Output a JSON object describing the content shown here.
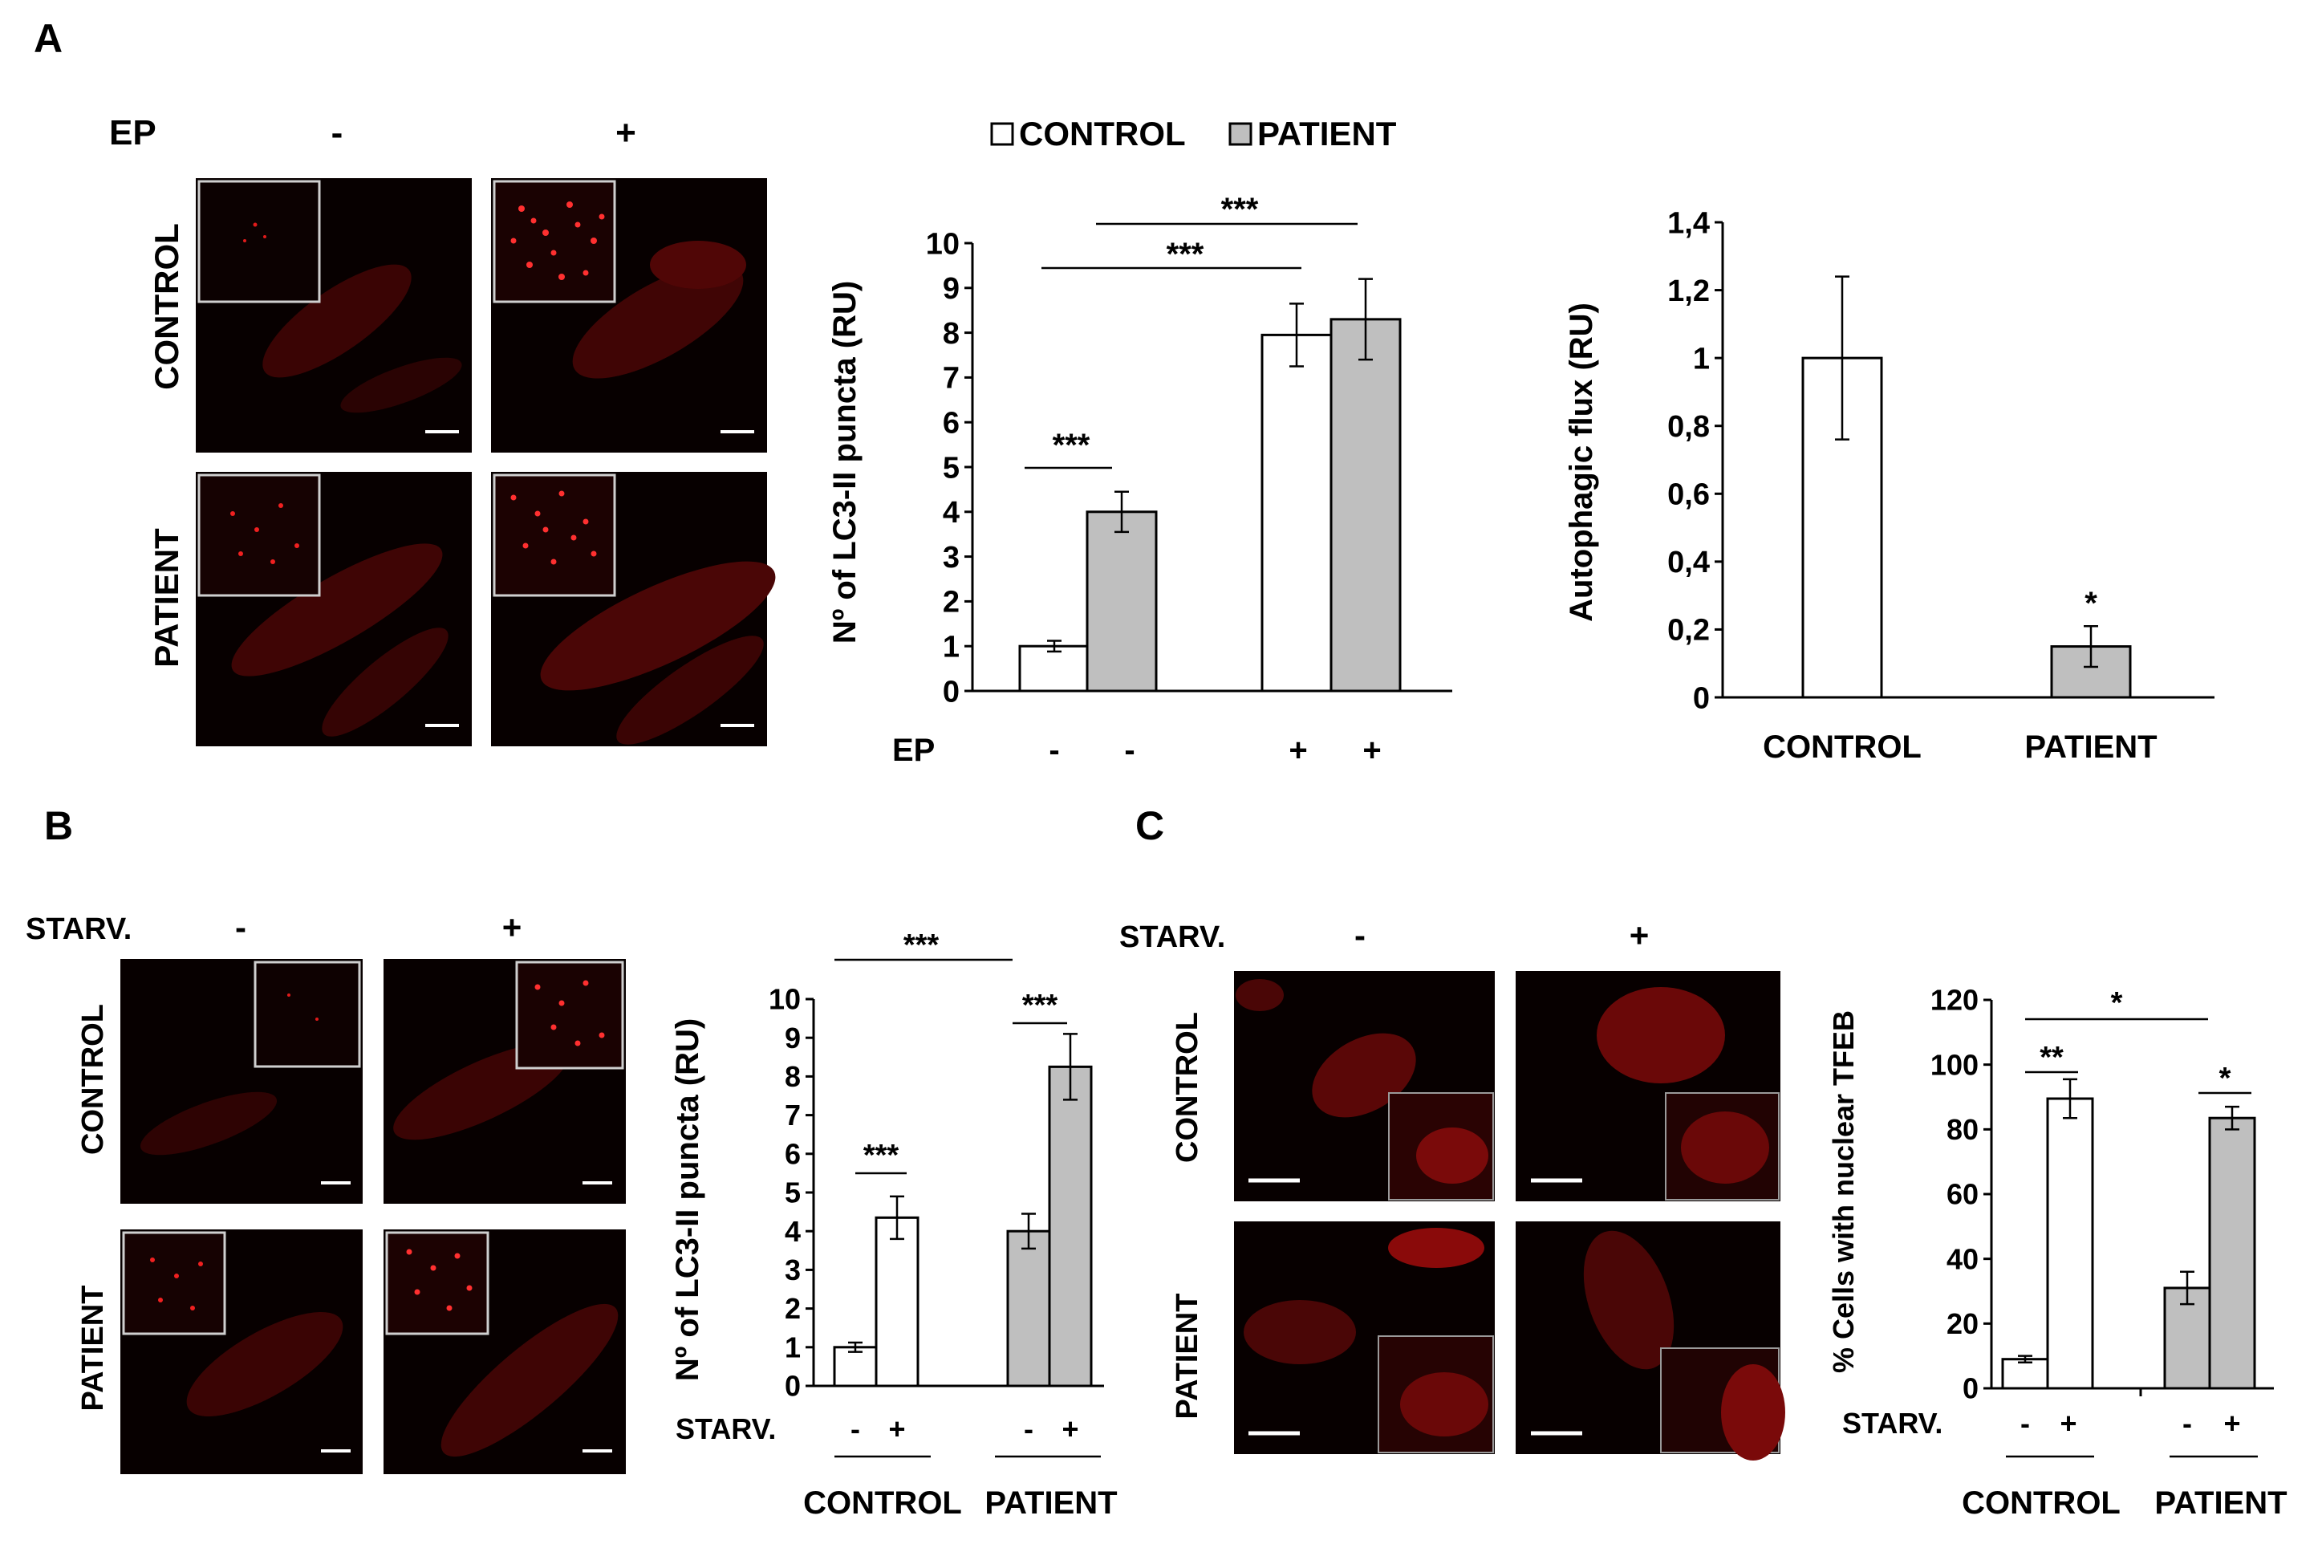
{
  "panels": {
    "A": {
      "letter": "A",
      "images": {
        "treatment_label": "EP",
        "col_labels": [
          "-",
          "+"
        ],
        "row_labels": [
          "CONTROL",
          "PATIENT"
        ]
      }
    },
    "B": {
      "letter": "B",
      "images": {
        "treatment_label": "STARV.",
        "col_labels": [
          "-",
          "+"
        ],
        "row_labels": [
          "CONTROL",
          "PATIENT"
        ]
      }
    },
    "C": {
      "letter": "C",
      "images": {
        "treatment_label": "STARV.",
        "col_labels": [
          "-",
          "+"
        ],
        "row_labels": [
          "CONTROL",
          "PATIENT"
        ]
      }
    }
  },
  "legend": [
    {
      "name": "CONTROL",
      "color": "#ffffff"
    },
    {
      "name": "PATIENT",
      "color": "#bfbfbf"
    }
  ],
  "colors": {
    "control": "#ffffff",
    "patient": "#bfbfbf",
    "micrograph_bg": "#070000",
    "signal": "#e01a1a"
  },
  "chart_data": [
    {
      "id": "A-puncta",
      "type": "bar",
      "ylabel": "Nº of LC3-II puncta (RU)",
      "ylim": [
        0,
        10
      ],
      "yticks": [
        0,
        1,
        2,
        3,
        4,
        5,
        6,
        7,
        8,
        9,
        10
      ],
      "bars": [
        {
          "group": "CONTROL",
          "treatment": "-",
          "value": 1.0,
          "error": 0.12
        },
        {
          "group": "PATIENT",
          "treatment": "-",
          "value": 4.0,
          "error": 0.45
        },
        {
          "group": "CONTROL",
          "treatment": "+",
          "value": 7.95,
          "error": 0.7
        },
        {
          "group": "PATIENT",
          "treatment": "+",
          "value": 8.3,
          "error": 0.9
        }
      ],
      "treatment_label": "EP",
      "treatment_ticks": [
        "-",
        "-",
        "+",
        "+"
      ],
      "significance": [
        "***",
        "***",
        "***"
      ]
    },
    {
      "id": "A-flux",
      "type": "bar",
      "ylabel": "Autophagic flux (RU)",
      "ylim": [
        0,
        1.4
      ],
      "yticks": [
        "0",
        "0,2",
        "0,4",
        "0,6",
        "0,8",
        "1",
        "1,2",
        "1,4"
      ],
      "categories": [
        "CONTROL",
        "PATIENT"
      ],
      "values": [
        1.0,
        0.15
      ],
      "errors": [
        0.24,
        0.06
      ],
      "significance": [
        "*"
      ]
    },
    {
      "id": "B-puncta",
      "type": "bar",
      "ylabel": "Nº of LC3-II puncta (RU)",
      "ylim": [
        0,
        10
      ],
      "yticks": [
        0,
        1,
        2,
        3,
        4,
        5,
        6,
        7,
        8,
        9,
        10
      ],
      "bars": [
        {
          "group": "CONTROL",
          "treatment": "-",
          "value": 1.0,
          "error": 0.12
        },
        {
          "group": "CONTROL",
          "treatment": "+",
          "value": 4.35,
          "error": 0.55
        },
        {
          "group": "PATIENT",
          "treatment": "-",
          "value": 4.0,
          "error": 0.45
        },
        {
          "group": "PATIENT",
          "treatment": "+",
          "value": 8.25,
          "error": 0.85
        }
      ],
      "treatment_label": "STARV.",
      "treatment_ticks": [
        "-",
        "+",
        "-",
        "+"
      ],
      "group_labels": [
        "CONTROL",
        "PATIENT"
      ],
      "significance": [
        "***",
        "***",
        "***"
      ]
    },
    {
      "id": "C-tfeb",
      "type": "bar",
      "ylabel": "% Cells with nuclear TFEB",
      "ylim": [
        0,
        120
      ],
      "yticks": [
        0,
        20,
        40,
        60,
        80,
        100,
        120
      ],
      "bars": [
        {
          "group": "CONTROL",
          "treatment": "-",
          "value": 9,
          "error": 1
        },
        {
          "group": "CONTROL",
          "treatment": "+",
          "value": 89.5,
          "error": 6
        },
        {
          "group": "PATIENT",
          "treatment": "-",
          "value": 31,
          "error": 5
        },
        {
          "group": "PATIENT",
          "treatment": "+",
          "value": 83.5,
          "error": 3.5
        }
      ],
      "treatment_label": "STARV.",
      "treatment_ticks": [
        "-",
        "+",
        "-",
        "+"
      ],
      "group_labels": [
        "CONTROL",
        "PATIENT"
      ],
      "significance": [
        "**",
        "*",
        "*"
      ]
    }
  ]
}
